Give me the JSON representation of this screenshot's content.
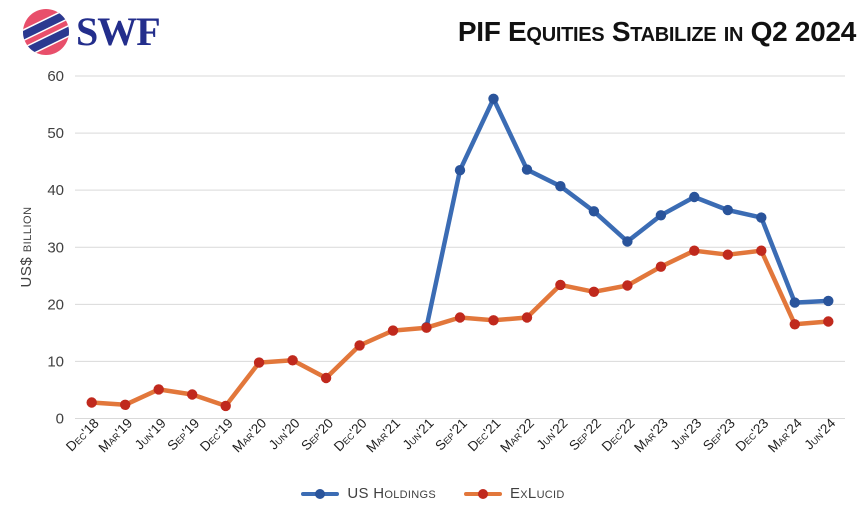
{
  "logo": {
    "text": "SWF",
    "icon": "globe-swoosh-icon",
    "icon_red": "#e84f6b",
    "icon_blue": "#2b3990",
    "text_color": "#232e8c"
  },
  "title": "PIF Equities Stabilize in Q2 2024",
  "chart_data": {
    "type": "line",
    "title": "PIF Equities Stabilize in Q2 2024",
    "ylabel": "US$ billion",
    "xlabel": "",
    "ylim": [
      0,
      60
    ],
    "ytick_step": 10,
    "grid": true,
    "legend_position": "bottom",
    "categories": [
      "Dec'18",
      "Mar'19",
      "Jun'19",
      "Sep'19",
      "Dec'19",
      "Mar'20",
      "Jun'20",
      "Sep'20",
      "Dec'20",
      "Mar'21",
      "Jun'21",
      "Sep'21",
      "Dec'21",
      "Mar'22",
      "Jun'22",
      "Sep'22",
      "Dec'22",
      "Mar'23",
      "Jun'23",
      "Sep'23",
      "Dec'23",
      "Mar'24",
      "Jun'24"
    ],
    "series": [
      {
        "name": "US Holdings",
        "line_color": "#3b6cb4",
        "marker_color": "#2a549b",
        "values": [
          null,
          null,
          null,
          null,
          null,
          null,
          null,
          null,
          null,
          null,
          16,
          43.5,
          56,
          43.6,
          40.7,
          36.3,
          31,
          35.6,
          38.8,
          36.5,
          35.2,
          20.3,
          20.6
        ]
      },
      {
        "name": "ExLucid",
        "line_color": "#e2773b",
        "marker_color": "#c0291d",
        "values": [
          2.8,
          2.4,
          5.1,
          4.2,
          2.2,
          9.8,
          10.2,
          7.1,
          12.8,
          15.4,
          15.9,
          17.7,
          17.2,
          17.7,
          23.4,
          22.2,
          23.3,
          26.6,
          29.4,
          28.7,
          29.4,
          16.5,
          17
        ]
      }
    ]
  }
}
